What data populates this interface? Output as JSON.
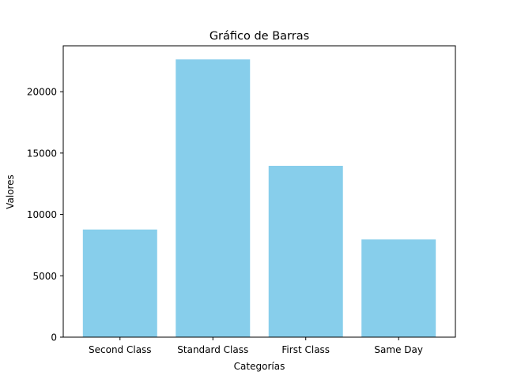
{
  "chart_data": {
    "type": "bar",
    "title": "Gráfico de Barras",
    "xlabel": "Categorías",
    "ylabel": "Valores",
    "categories": [
      "Second Class",
      "Standard Class",
      "First Class",
      "Same Day"
    ],
    "values": [
      8770,
      22630,
      13960,
      7960
    ],
    "ylim": [
      0,
      23740
    ],
    "yticks": [
      0,
      5000,
      10000,
      15000,
      20000
    ],
    "bar_color": "#87ceeb",
    "grid": false,
    "legend": "none"
  }
}
